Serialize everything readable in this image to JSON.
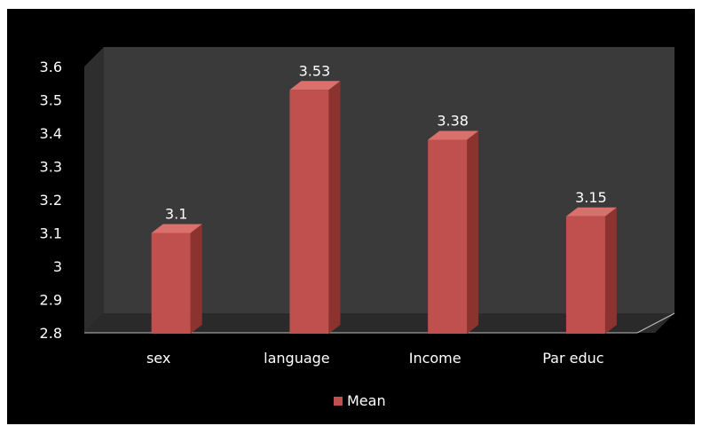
{
  "chart_data": {
    "type": "bar",
    "title": "",
    "xlabel": "",
    "ylabel": "",
    "categories": [
      "sex",
      "language",
      "Income",
      "Par educ"
    ],
    "series": [
      {
        "name": "Mean",
        "values": [
          3.1,
          3.53,
          3.38,
          3.15
        ],
        "labels": [
          "3.1",
          "3.53",
          "3.38",
          "3.15"
        ]
      }
    ],
    "ylim": [
      2.8,
      3.6
    ],
    "yticks": [
      2.8,
      2.9,
      3,
      3.1,
      3.2,
      3.3,
      3.4,
      3.5,
      3.6
    ],
    "ytick_labels": [
      "2.8",
      "2.9",
      "3",
      "3.1",
      "3.2",
      "3.3",
      "3.4",
      "3.5",
      "3.6"
    ],
    "grid": false,
    "legend": "bottom",
    "style": "3d-column",
    "colors": {
      "bar_front": "#c0504d",
      "bar_side": "#8c3330",
      "bar_top": "#d9706c",
      "back_wall": "#3a3a3a",
      "floor": "#2a2a2a",
      "background": "#000000",
      "text": "#ffffff"
    }
  }
}
